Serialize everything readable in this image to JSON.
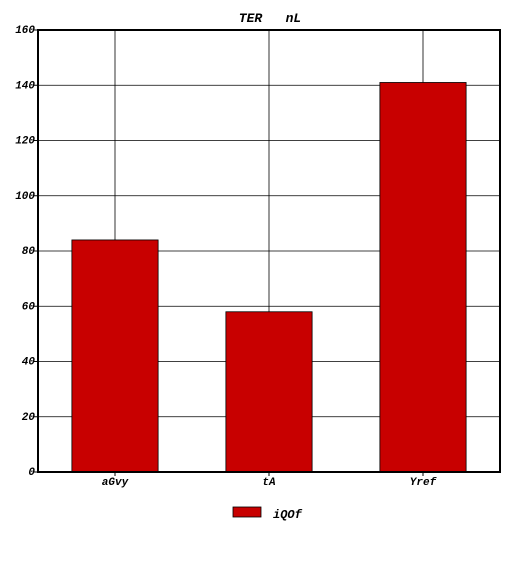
{
  "chart_data": {
    "type": "bar",
    "title": "TER   nL",
    "xlabel": "",
    "ylabel": "",
    "categories": [
      "aGvy",
      "tA",
      "Yref"
    ],
    "series": [
      {
        "name": "iQOf",
        "values": [
          84,
          58,
          141
        ]
      }
    ],
    "ylim": [
      0,
      160
    ],
    "yticks": [
      0,
      20,
      40,
      60,
      80,
      100,
      120,
      140,
      160
    ],
    "grid": true,
    "legend_position": "bottom-center",
    "colors": {
      "bar": "#c80000",
      "grid": "#000000",
      "axis": "#000000"
    }
  }
}
